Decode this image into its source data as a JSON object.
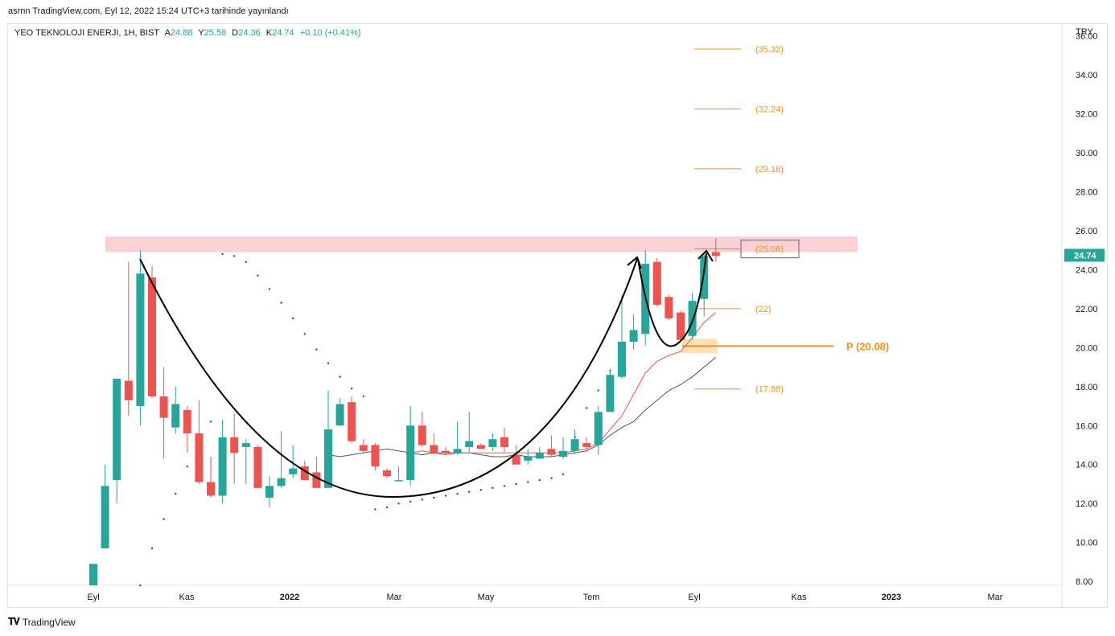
{
  "header": {
    "published": "asrnn TradingView.com, Eyl 12, 2022 15:24 UTC+3 tarihinde yayınlandı"
  },
  "symbol": {
    "name": "YEO TEKNOLOJI ENERJI, 1H, BIST",
    "a_label": "A",
    "a_value": "24.88",
    "y_label": "Y",
    "y_value": "25.58",
    "d_label": "D",
    "d_value": "24.36",
    "k_label": "K",
    "k_value": "24.74",
    "change": "+0.10 (+0.41%)"
  },
  "axis": {
    "currency": "TRY"
  },
  "footer": {
    "brand": "TradingView"
  },
  "colors": {
    "up": "#26a69a",
    "down": "#ef5350",
    "level": "#f7931a",
    "zone": "#f9c8cc",
    "sar": "#1e3fd0",
    "ma_fast": "#ef5350",
    "ma_slow": "#555555"
  },
  "chart_data": {
    "type": "candlestick",
    "ylim": [
      7.8,
      36.6
    ],
    "y_ticks": [
      "8.00",
      "10.00",
      "12.00",
      "14.00",
      "16.00",
      "18.00",
      "20.00",
      "22.00",
      "24.00",
      "26.00",
      "28.00",
      "30.00",
      "32.00",
      "34.00",
      "36.00"
    ],
    "x_ticks": [
      {
        "label": "Eyl",
        "bold": false
      },
      {
        "label": "Kas",
        "bold": false
      },
      {
        "label": "2022",
        "bold": true
      },
      {
        "label": "Mar",
        "bold": false
      },
      {
        "label": "May",
        "bold": false
      },
      {
        "label": "Tem",
        "bold": false
      },
      {
        "label": "Eyl",
        "bold": false
      },
      {
        "label": "Kas",
        "bold": false
      },
      {
        "label": "2023",
        "bold": true
      },
      {
        "label": "Mar",
        "bold": false
      }
    ],
    "last_price": "24.74",
    "candles": [
      {
        "o": 7.8,
        "h": 8.9,
        "l": 7.8,
        "c": 8.9
      },
      {
        "o": 9.7,
        "h": 14.0,
        "l": 9.7,
        "c": 12.9
      },
      {
        "o": 13.2,
        "h": 18.4,
        "l": 12.0,
        "c": 18.4
      },
      {
        "o": 18.3,
        "h": 24.4,
        "l": 16.5,
        "c": 17.3
      },
      {
        "o": 17.0,
        "h": 25.0,
        "l": 16.0,
        "c": 23.8
      },
      {
        "o": 23.6,
        "h": 24.2,
        "l": 17.4,
        "c": 17.5
      },
      {
        "o": 17.5,
        "h": 19.0,
        "l": 14.3,
        "c": 16.4
      },
      {
        "o": 15.9,
        "h": 18.0,
        "l": 15.6,
        "c": 17.1
      },
      {
        "o": 16.8,
        "h": 17.0,
        "l": 14.6,
        "c": 15.6
      },
      {
        "o": 15.6,
        "h": 17.3,
        "l": 13.0,
        "c": 13.1
      },
      {
        "o": 13.1,
        "h": 14.4,
        "l": 12.3,
        "c": 12.4
      },
      {
        "o": 12.4,
        "h": 16.3,
        "l": 12.0,
        "c": 15.4
      },
      {
        "o": 15.4,
        "h": 16.6,
        "l": 13.0,
        "c": 14.6
      },
      {
        "o": 14.9,
        "h": 15.3,
        "l": 13.0,
        "c": 15.1
      },
      {
        "o": 14.9,
        "h": 15.0,
        "l": 12.8,
        "c": 12.8
      },
      {
        "o": 12.3,
        "h": 13.4,
        "l": 11.8,
        "c": 12.9
      },
      {
        "o": 12.9,
        "h": 15.7,
        "l": 12.8,
        "c": 13.3
      },
      {
        "o": 13.5,
        "h": 15.0,
        "l": 13.3,
        "c": 13.8
      },
      {
        "o": 13.9,
        "h": 14.2,
        "l": 13.2,
        "c": 13.2
      },
      {
        "o": 13.6,
        "h": 14.4,
        "l": 12.8,
        "c": 12.8
      },
      {
        "o": 12.8,
        "h": 17.8,
        "l": 12.8,
        "c": 15.8
      },
      {
        "o": 16.0,
        "h": 17.4,
        "l": 16.0,
        "c": 17.1
      },
      {
        "o": 17.2,
        "h": 17.5,
        "l": 15.1,
        "c": 15.2
      },
      {
        "o": 15.0,
        "h": 15.3,
        "l": 14.6,
        "c": 14.7
      },
      {
        "o": 15.0,
        "h": 15.1,
        "l": 13.7,
        "c": 13.9
      },
      {
        "o": 13.7,
        "h": 13.8,
        "l": 13.3,
        "c": 13.4
      },
      {
        "o": 13.2,
        "h": 13.9,
        "l": 13.2,
        "c": 13.2
      },
      {
        "o": 13.2,
        "h": 17.0,
        "l": 12.9,
        "c": 16.0
      },
      {
        "o": 16.0,
        "h": 16.7,
        "l": 14.9,
        "c": 15.0
      },
      {
        "o": 15.0,
        "h": 15.6,
        "l": 14.5,
        "c": 14.6
      },
      {
        "o": 14.7,
        "h": 14.9,
        "l": 14.5,
        "c": 14.6
      },
      {
        "o": 14.6,
        "h": 16.2,
        "l": 14.5,
        "c": 14.8
      },
      {
        "o": 14.9,
        "h": 16.7,
        "l": 14.6,
        "c": 15.2
      },
      {
        "o": 15.0,
        "h": 15.1,
        "l": 14.8,
        "c": 14.8
      },
      {
        "o": 14.9,
        "h": 15.6,
        "l": 14.7,
        "c": 15.3
      },
      {
        "o": 15.4,
        "h": 15.9,
        "l": 14.6,
        "c": 14.9
      },
      {
        "o": 14.5,
        "h": 15.0,
        "l": 14.0,
        "c": 14.0
      },
      {
        "o": 14.2,
        "h": 14.8,
        "l": 14.0,
        "c": 14.4
      },
      {
        "o": 14.3,
        "h": 14.9,
        "l": 14.3,
        "c": 14.6
      },
      {
        "o": 14.8,
        "h": 15.5,
        "l": 14.4,
        "c": 14.5
      },
      {
        "o": 14.4,
        "h": 15.4,
        "l": 14.3,
        "c": 14.7
      },
      {
        "o": 14.7,
        "h": 15.8,
        "l": 14.6,
        "c": 15.3
      },
      {
        "o": 15.1,
        "h": 15.4,
        "l": 14.8,
        "c": 14.9
      },
      {
        "o": 15.0,
        "h": 17.0,
        "l": 14.5,
        "c": 16.7
      },
      {
        "o": 16.7,
        "h": 18.9,
        "l": 16.7,
        "c": 18.6
      },
      {
        "o": 18.5,
        "h": 22.7,
        "l": 18.4,
        "c": 20.3
      },
      {
        "o": 20.3,
        "h": 21.7,
        "l": 19.9,
        "c": 20.9
      },
      {
        "o": 20.7,
        "h": 25.0,
        "l": 20.1,
        "c": 24.3
      },
      {
        "o": 24.4,
        "h": 24.6,
        "l": 22.1,
        "c": 22.2
      },
      {
        "o": 22.6,
        "h": 22.7,
        "l": 21.4,
        "c": 21.5
      },
      {
        "o": 21.8,
        "h": 21.9,
        "l": 20.3,
        "c": 20.4
      },
      {
        "o": 20.6,
        "h": 22.8,
        "l": 20.4,
        "c": 22.4
      },
      {
        "o": 22.5,
        "h": 24.8,
        "l": 21.6,
        "c": 24.7
      },
      {
        "o": 24.9,
        "h": 25.6,
        "l": 24.4,
        "c": 24.7
      }
    ],
    "sar": [
      7.8,
      9.7,
      11.2,
      12.5,
      13.9,
      15.0,
      16.2,
      24.8,
      24.7,
      24.4,
      23.7,
      23.0,
      22.3,
      21.5,
      20.7,
      19.9,
      19.2,
      18.5,
      17.9,
      17.5,
      11.7,
      11.8,
      12.0,
      12.1,
      12.2,
      12.3,
      12.4,
      12.5,
      12.6,
      12.7,
      12.8,
      12.9,
      13.0,
      13.1,
      13.2,
      13.3,
      13.5,
      15.4,
      16.9,
      17.8,
      18.8,
      20.0
    ],
    "sar_start_index": 4,
    "ma_fast": [
      14.6,
      14.7,
      14.6,
      14.5,
      14.6,
      14.6,
      14.6,
      14.6,
      14.6,
      14.6,
      14.6,
      14.6,
      14.6,
      14.6,
      14.7,
      14.8,
      15.1,
      15.8,
      16.5,
      17.6,
      18.7,
      19.3,
      19.6,
      19.8,
      20.5,
      21.3,
      21.8
    ],
    "ma_fast_start_index": 27,
    "ma_slow": [
      14.5,
      14.4,
      14.5,
      14.6,
      14.7,
      14.8,
      14.7,
      14.6,
      14.5,
      14.6,
      14.6,
      14.6,
      14.6,
      14.5,
      14.4,
      14.4,
      14.5,
      14.4,
      14.4,
      14.4,
      14.5,
      14.6,
      14.7,
      15.0,
      15.5,
      15.9,
      16.2,
      16.8,
      17.3,
      17.8,
      18.1,
      18.5,
      19.0,
      19.5
    ],
    "ma_slow_start_index": 20,
    "levels": [
      {
        "label": "(35.32)",
        "value": 35.32
      },
      {
        "label": "(32.24)",
        "value": 32.24
      },
      {
        "label": "(29.18)",
        "value": 29.18
      },
      {
        "label": "(25.06)",
        "value": 25.06
      },
      {
        "label": "(22)",
        "value": 22.0
      },
      {
        "label": "(17.88)",
        "value": 17.88
      }
    ],
    "pivot": {
      "label": "P (20.08)",
      "value": 20.08
    },
    "resistance_zone": [
      24.9,
      25.7
    ]
  }
}
